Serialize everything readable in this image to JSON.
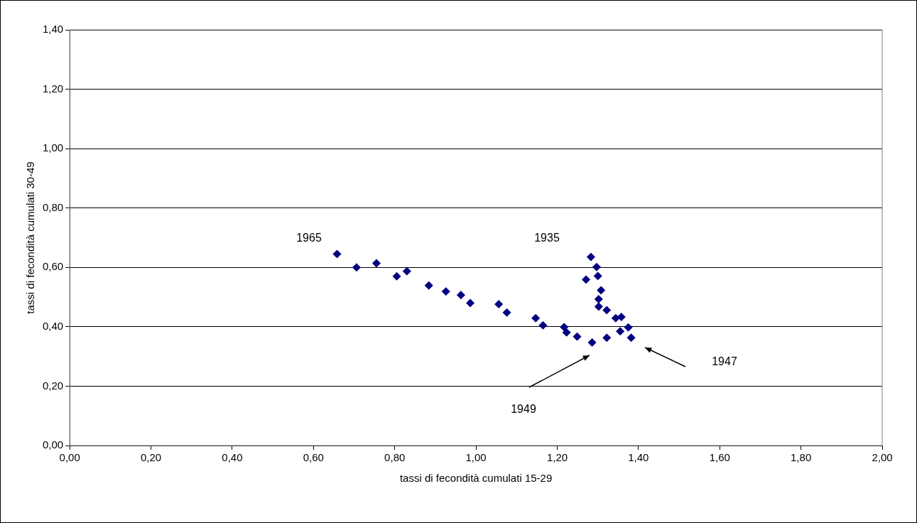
{
  "chart_data": {
    "type": "scatter",
    "xlabel": "tassi di fecondità cumulati 15-29",
    "ylabel": "tassi di fecondità cumulati 30-49",
    "series": [
      {
        "color": "#000080",
        "x": [
          0.658,
          0.706,
          0.755,
          0.805,
          0.83,
          0.884,
          0.926,
          0.963,
          0.986,
          1.056,
          1.076,
          1.147,
          1.165,
          1.217,
          1.223,
          1.249,
          1.286,
          1.322,
          1.355,
          1.382,
          1.375,
          1.358,
          1.344,
          1.322,
          1.302,
          1.302,
          1.308,
          1.271,
          1.3,
          1.297,
          1.283
        ],
        "values": [
          0.645,
          0.6,
          0.614,
          0.57,
          0.587,
          0.539,
          0.519,
          0.507,
          0.48,
          0.476,
          0.448,
          0.429,
          0.405,
          0.399,
          0.381,
          0.367,
          0.347,
          0.363,
          0.385,
          0.363,
          0.398,
          0.433,
          0.429,
          0.456,
          0.468,
          0.493,
          0.523,
          0.559,
          0.571,
          0.601,
          0.635
        ]
      }
    ],
    "xlim": [
      0,
      2
    ],
    "xticks": [
      {
        "value": 0,
        "label": "0,00"
      },
      {
        "value": 0.2,
        "label": "0,20"
      },
      {
        "value": 0.4,
        "label": "0,40"
      },
      {
        "value": 0.6,
        "label": "0,60"
      },
      {
        "value": 0.8,
        "label": "0,80"
      },
      {
        "value": 1,
        "label": "1,00"
      },
      {
        "value": 1.2,
        "label": "1,20"
      },
      {
        "value": 1.4,
        "label": "1,40"
      },
      {
        "value": 1.6,
        "label": "1,60"
      },
      {
        "value": 1.8,
        "label": "1,80"
      },
      {
        "value": 2,
        "label": "2,00"
      }
    ],
    "ylim": [
      0,
      1.4
    ],
    "yticks": [
      {
        "value": 0,
        "label": "0,00"
      },
      {
        "value": 0.2,
        "label": "0,20"
      },
      {
        "value": 0.4,
        "label": "0,40"
      },
      {
        "value": 0.6,
        "label": "0,60"
      },
      {
        "value": 0.8,
        "label": "0,80"
      },
      {
        "value": 1,
        "label": "1,00"
      },
      {
        "value": 1.2,
        "label": "1,20"
      },
      {
        "value": 1.4,
        "label": "1,40"
      }
    ],
    "grid": "y",
    "legend": false,
    "marker": "diamond",
    "annotations": [
      "1965",
      "1935",
      "1949",
      "1947"
    ]
  }
}
